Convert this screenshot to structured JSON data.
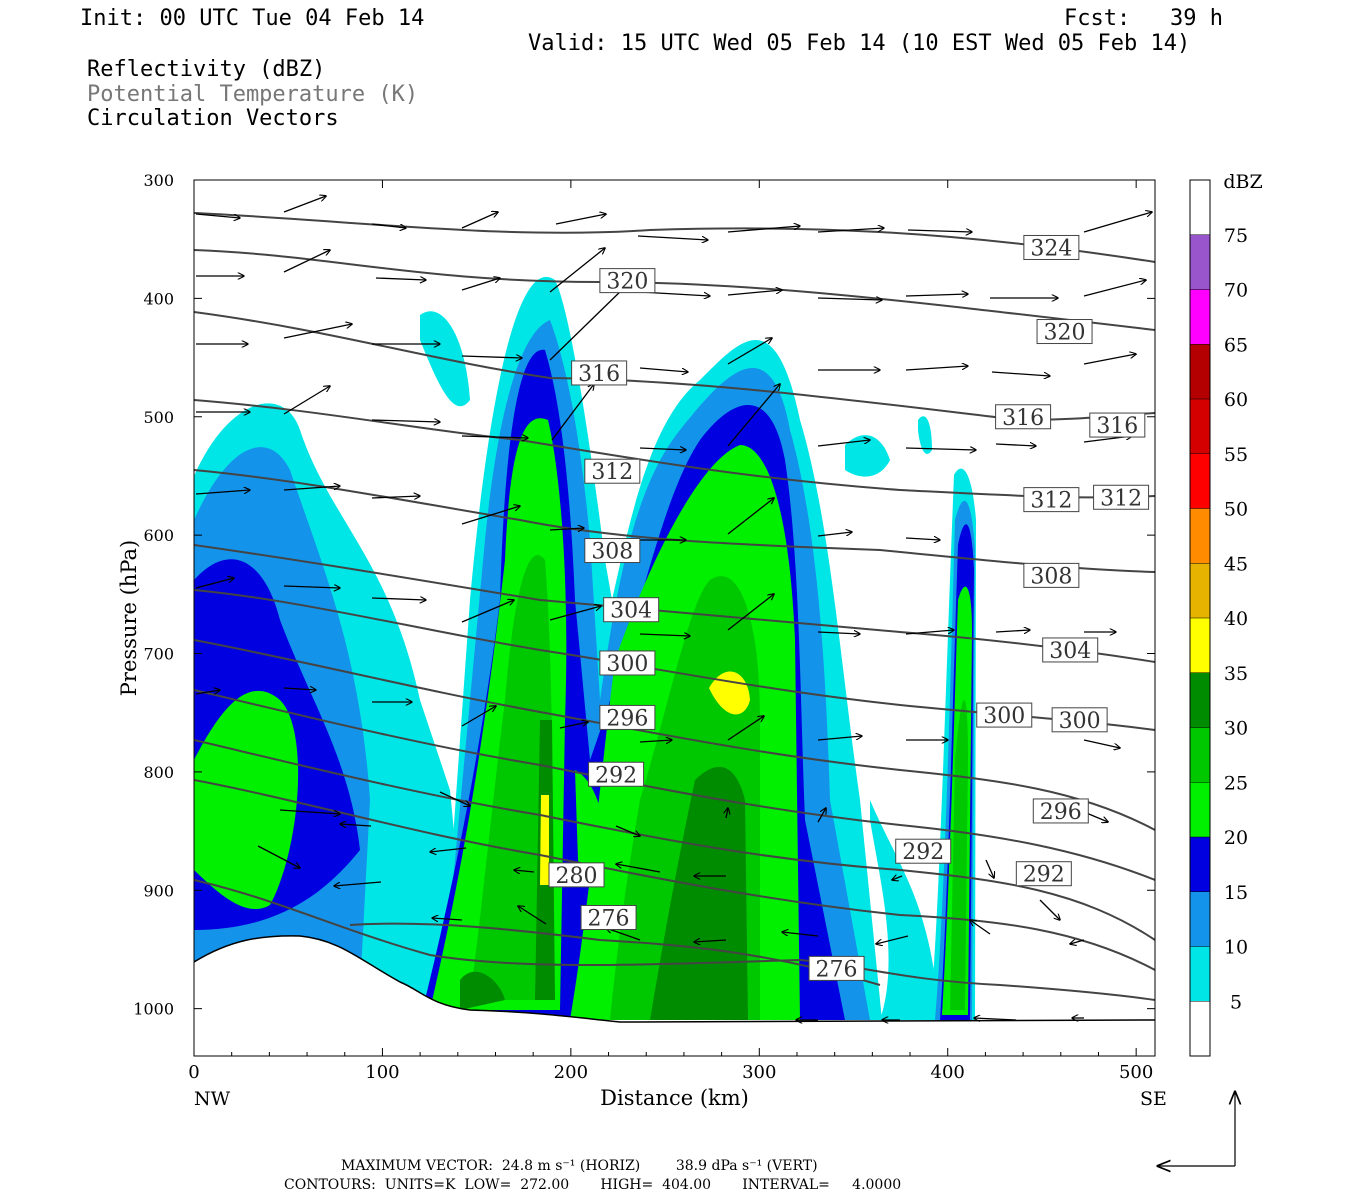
{
  "header": {
    "init": "Init: 00 UTC Tue 04 Feb 14",
    "fcst": "Fcst:   39 h",
    "valid": "Valid: 15 UTC Wed 05 Feb 14 (10 EST Wed 05 Feb 14)",
    "field1": "Reflectivity (dBZ)",
    "field2": "Potential Temperature (K)",
    "field3": "Circulation Vectors"
  },
  "footer": {
    "max_vector": "MAXIMUM VECTOR:  24.8 m s⁻¹ (HORIZ)        38.9 dPa s⁻¹ (VERT)",
    "contours": "CONTOURS:  UNITS=K  LOW=  272.00       HIGH=  404.00       INTERVAL=     4.0000"
  },
  "chart_data": {
    "type": "heatmap",
    "title": "Reflectivity (dBZ) / Potential Temperature (K) / Circulation Vectors cross-section",
    "xlabel": "Distance (km)",
    "ylabel": "Pressure (hPa)",
    "x_ticks": [
      0,
      100,
      200,
      300,
      400,
      500
    ],
    "y_ticks": [
      300,
      400,
      500,
      600,
      700,
      800,
      900,
      1000
    ],
    "xlim": [
      0,
      510
    ],
    "ylim": [
      1040,
      300
    ],
    "left_end_label": "NW",
    "right_end_label": "SE",
    "colorbar": {
      "unit": "dBZ",
      "levels": [
        5,
        10,
        15,
        20,
        25,
        30,
        35,
        40,
        45,
        50,
        55,
        60,
        65,
        70,
        75
      ],
      "colors": [
        "#ffffff",
        "#00e6e6",
        "#1493ea",
        "#0000e0",
        "#00f000",
        "#00c800",
        "#008c00",
        "#ffff00",
        "#e6b400",
        "#ff8c00",
        "#ff0000",
        "#d40000",
        "#b40000",
        "#ff00ff",
        "#9955cc",
        "#ffffff"
      ]
    },
    "theta_contours": {
      "units": "K",
      "low": 272.0,
      "high": 404.0,
      "interval": 4.0,
      "labels": [
        {
          "value": "324",
          "x": 455,
          "p": 357
        },
        {
          "value": "320",
          "x": 230,
          "p": 385
        },
        {
          "value": "320",
          "x": 462,
          "p": 428
        },
        {
          "value": "316",
          "x": 215,
          "p": 463
        },
        {
          "value": "316",
          "x": 440,
          "p": 500
        },
        {
          "value": "316",
          "x": 490,
          "p": 507
        },
        {
          "value": "312",
          "x": 222,
          "p": 546
        },
        {
          "value": "312",
          "x": 455,
          "p": 570
        },
        {
          "value": "312",
          "x": 492,
          "p": 568
        },
        {
          "value": "308",
          "x": 222,
          "p": 613
        },
        {
          "value": "308",
          "x": 455,
          "p": 634
        },
        {
          "value": "304",
          "x": 232,
          "p": 663
        },
        {
          "value": "304",
          "x": 465,
          "p": 697
        },
        {
          "value": "300",
          "x": 230,
          "p": 708
        },
        {
          "value": "300",
          "x": 430,
          "p": 752
        },
        {
          "value": "300",
          "x": 470,
          "p": 756
        },
        {
          "value": "296",
          "x": 230,
          "p": 754
        },
        {
          "value": "296",
          "x": 460,
          "p": 833
        },
        {
          "value": "292",
          "x": 224,
          "p": 802
        },
        {
          "value": "292",
          "x": 387,
          "p": 867
        },
        {
          "value": "292",
          "x": 451,
          "p": 886
        },
        {
          "value": "280",
          "x": 203,
          "p": 887
        },
        {
          "value": "276",
          "x": 220,
          "p": 923
        },
        {
          "value": "276",
          "x": 341,
          "p": 966
        }
      ]
    },
    "reflectivity_cores": [
      {
        "x": 30,
        "p": 810,
        "dbz": 25
      },
      {
        "x": 185,
        "p": 700,
        "dbz": 30
      },
      {
        "x": 187,
        "p": 845,
        "dbz": 35
      },
      {
        "x": 290,
        "p": 720,
        "dbz": 35
      },
      {
        "x": 408,
        "p": 800,
        "dbz": 25
      }
    ],
    "reference_vectors": {
      "horizontal": "24.8 m s⁻¹",
      "vertical": "38.9 dPa s⁻¹"
    }
  }
}
